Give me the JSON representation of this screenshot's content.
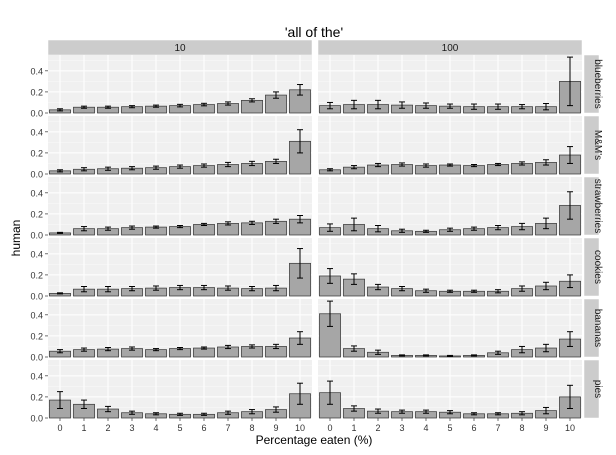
{
  "chart_data": {
    "type": "bar",
    "title": "'all of the'",
    "xlabel": "Percentage eaten (%)",
    "ylabel": "human",
    "categories": [
      "0",
      "1",
      "2",
      "3",
      "4",
      "5",
      "6",
      "7",
      "8",
      "9",
      "10"
    ],
    "ylim": [
      0,
      0.55
    ],
    "yticks": [
      0.0,
      0.2,
      0.4
    ],
    "ytick_labels": [
      "0.0",
      "0.2",
      "0.4"
    ],
    "grid": true,
    "facet_columns": [
      "10",
      "100"
    ],
    "facet_rows": [
      "blueberries",
      "M&M's",
      "strawberries",
      "cookies",
      "bananas",
      "pies"
    ],
    "bar_color": "#a6a6a6",
    "panels": [
      {
        "row": "blueberries",
        "col": "10",
        "values": [
          0.03,
          0.055,
          0.055,
          0.06,
          0.065,
          0.07,
          0.08,
          0.09,
          0.12,
          0.17,
          0.22
        ],
        "err": [
          0.01,
          0.01,
          0.01,
          0.01,
          0.01,
          0.012,
          0.012,
          0.015,
          0.015,
          0.03,
          0.05
        ]
      },
      {
        "row": "blueberries",
        "col": "100",
        "values": [
          0.07,
          0.08,
          0.08,
          0.075,
          0.07,
          0.065,
          0.06,
          0.06,
          0.06,
          0.06,
          0.3
        ],
        "err": [
          0.03,
          0.04,
          0.04,
          0.03,
          0.025,
          0.02,
          0.025,
          0.025,
          0.02,
          0.03,
          0.23
        ]
      },
      {
        "row": "M&M's",
        "col": "10",
        "values": [
          0.03,
          0.045,
          0.05,
          0.055,
          0.06,
          0.07,
          0.08,
          0.09,
          0.1,
          0.12,
          0.31
        ],
        "err": [
          0.01,
          0.015,
          0.015,
          0.015,
          0.015,
          0.015,
          0.015,
          0.02,
          0.02,
          0.02,
          0.11
        ]
      },
      {
        "row": "M&M's",
        "col": "100",
        "values": [
          0.04,
          0.065,
          0.085,
          0.09,
          0.08,
          0.085,
          0.08,
          0.09,
          0.1,
          0.11,
          0.18
        ],
        "err": [
          0.01,
          0.015,
          0.015,
          0.015,
          0.015,
          0.01,
          0.01,
          0.01,
          0.015,
          0.025,
          0.08
        ]
      },
      {
        "row": "strawberries",
        "col": "10",
        "values": [
          0.02,
          0.06,
          0.06,
          0.07,
          0.075,
          0.08,
          0.1,
          0.11,
          0.115,
          0.13,
          0.15
        ],
        "err": [
          0.005,
          0.02,
          0.015,
          0.015,
          0.01,
          0.01,
          0.01,
          0.015,
          0.015,
          0.02,
          0.035
        ]
      },
      {
        "row": "strawberries",
        "col": "100",
        "values": [
          0.07,
          0.1,
          0.06,
          0.04,
          0.035,
          0.05,
          0.06,
          0.07,
          0.08,
          0.11,
          0.28
        ],
        "err": [
          0.035,
          0.06,
          0.03,
          0.015,
          0.01,
          0.015,
          0.015,
          0.02,
          0.03,
          0.05,
          0.13
        ]
      },
      {
        "row": "cookies",
        "col": "10",
        "values": [
          0.025,
          0.065,
          0.065,
          0.07,
          0.075,
          0.08,
          0.08,
          0.075,
          0.07,
          0.075,
          0.31
        ],
        "err": [
          0.005,
          0.025,
          0.025,
          0.02,
          0.02,
          0.02,
          0.02,
          0.02,
          0.02,
          0.025,
          0.14
        ]
      },
      {
        "row": "cookies",
        "col": "100",
        "values": [
          0.19,
          0.16,
          0.085,
          0.07,
          0.05,
          0.045,
          0.045,
          0.045,
          0.07,
          0.095,
          0.14
        ],
        "err": [
          0.07,
          0.05,
          0.025,
          0.02,
          0.015,
          0.01,
          0.01,
          0.015,
          0.025,
          0.035,
          0.06
        ]
      },
      {
        "row": "bananas",
        "col": "10",
        "values": [
          0.055,
          0.07,
          0.075,
          0.08,
          0.07,
          0.08,
          0.085,
          0.095,
          0.1,
          0.1,
          0.18
        ],
        "err": [
          0.015,
          0.015,
          0.015,
          0.015,
          0.01,
          0.01,
          0.01,
          0.015,
          0.015,
          0.02,
          0.06
        ]
      },
      {
        "row": "bananas",
        "col": "100",
        "values": [
          0.41,
          0.08,
          0.045,
          0.015,
          0.015,
          0.01,
          0.015,
          0.04,
          0.07,
          0.085,
          0.17
        ],
        "err": [
          0.12,
          0.025,
          0.02,
          0.005,
          0.005,
          0.005,
          0.005,
          0.015,
          0.03,
          0.035,
          0.07
        ]
      },
      {
        "row": "pies",
        "col": "10",
        "values": [
          0.17,
          0.13,
          0.085,
          0.05,
          0.04,
          0.035,
          0.035,
          0.05,
          0.06,
          0.08,
          0.23
        ],
        "err": [
          0.08,
          0.04,
          0.025,
          0.015,
          0.01,
          0.01,
          0.01,
          0.015,
          0.02,
          0.025,
          0.1
        ]
      },
      {
        "row": "pies",
        "col": "100",
        "values": [
          0.24,
          0.09,
          0.065,
          0.06,
          0.06,
          0.055,
          0.04,
          0.04,
          0.045,
          0.07,
          0.2
        ],
        "err": [
          0.11,
          0.025,
          0.02,
          0.015,
          0.015,
          0.015,
          0.01,
          0.01,
          0.015,
          0.03,
          0.11
        ]
      }
    ]
  }
}
